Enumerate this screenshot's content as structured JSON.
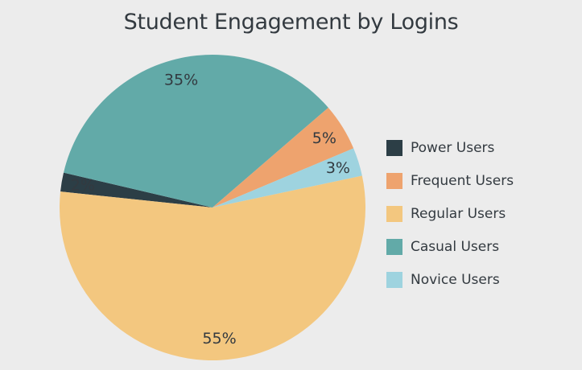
{
  "chart_data": {
    "type": "pie",
    "title": "Student Engagement by Logins",
    "slices": [
      {
        "label": "Power Users",
        "value": 2,
        "display": "2%",
        "color": "#2c3e46"
      },
      {
        "label": "Casual Users",
        "value": 35,
        "display": "35%",
        "color": "#62aaa8"
      },
      {
        "label": "Frequent Users",
        "value": 5,
        "display": "5%",
        "color": "#eea36e"
      },
      {
        "label": "Novice Users",
        "value": 3,
        "display": "3%",
        "color": "#9ed3df"
      },
      {
        "label": "Regular Users",
        "value": 55,
        "display": "55%",
        "color": "#f3c77f"
      }
    ],
    "legend": {
      "position": "right",
      "items": [
        {
          "label": "Power Users",
          "color": "#2c3e46"
        },
        {
          "label": "Frequent Users",
          "color": "#eea36e"
        },
        {
          "label": "Regular Users",
          "color": "#f3c77f"
        },
        {
          "label": "Casual Users",
          "color": "#62aaa8"
        },
        {
          "label": "Novice Users",
          "color": "#9ed3df"
        }
      ]
    }
  }
}
